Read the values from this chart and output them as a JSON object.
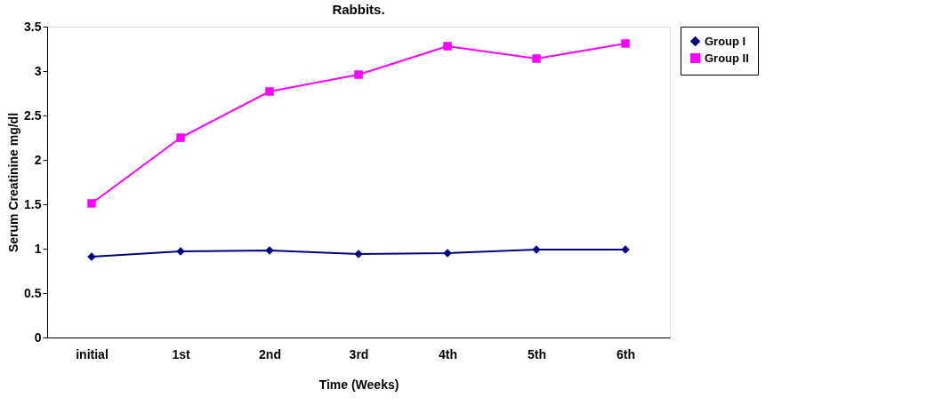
{
  "chart_data": {
    "type": "line",
    "title": "Rabbits.",
    "xlabel": "Time (Weeks)",
    "ylabel": "Serum Creatinine mg/dl",
    "categories": [
      "initial",
      "1st",
      "2nd",
      "3rd",
      "4th",
      "5th",
      "6th"
    ],
    "series": [
      {
        "name": "Group I",
        "color": "#000080",
        "marker": "diamond",
        "values": [
          0.91,
          0.97,
          0.98,
          0.94,
          0.95,
          0.99,
          0.99
        ]
      },
      {
        "name": "Group II",
        "color": "#ff00ff",
        "marker": "square",
        "values": [
          1.51,
          2.25,
          2.77,
          2.96,
          3.28,
          3.14,
          3.31
        ]
      }
    ],
    "ylim": [
      0,
      3.5
    ],
    "yticks": [
      0,
      0.5,
      1,
      1.5,
      2,
      2.5,
      3,
      3.5
    ],
    "grid": false,
    "legend": "right",
    "line_style": "solid"
  }
}
